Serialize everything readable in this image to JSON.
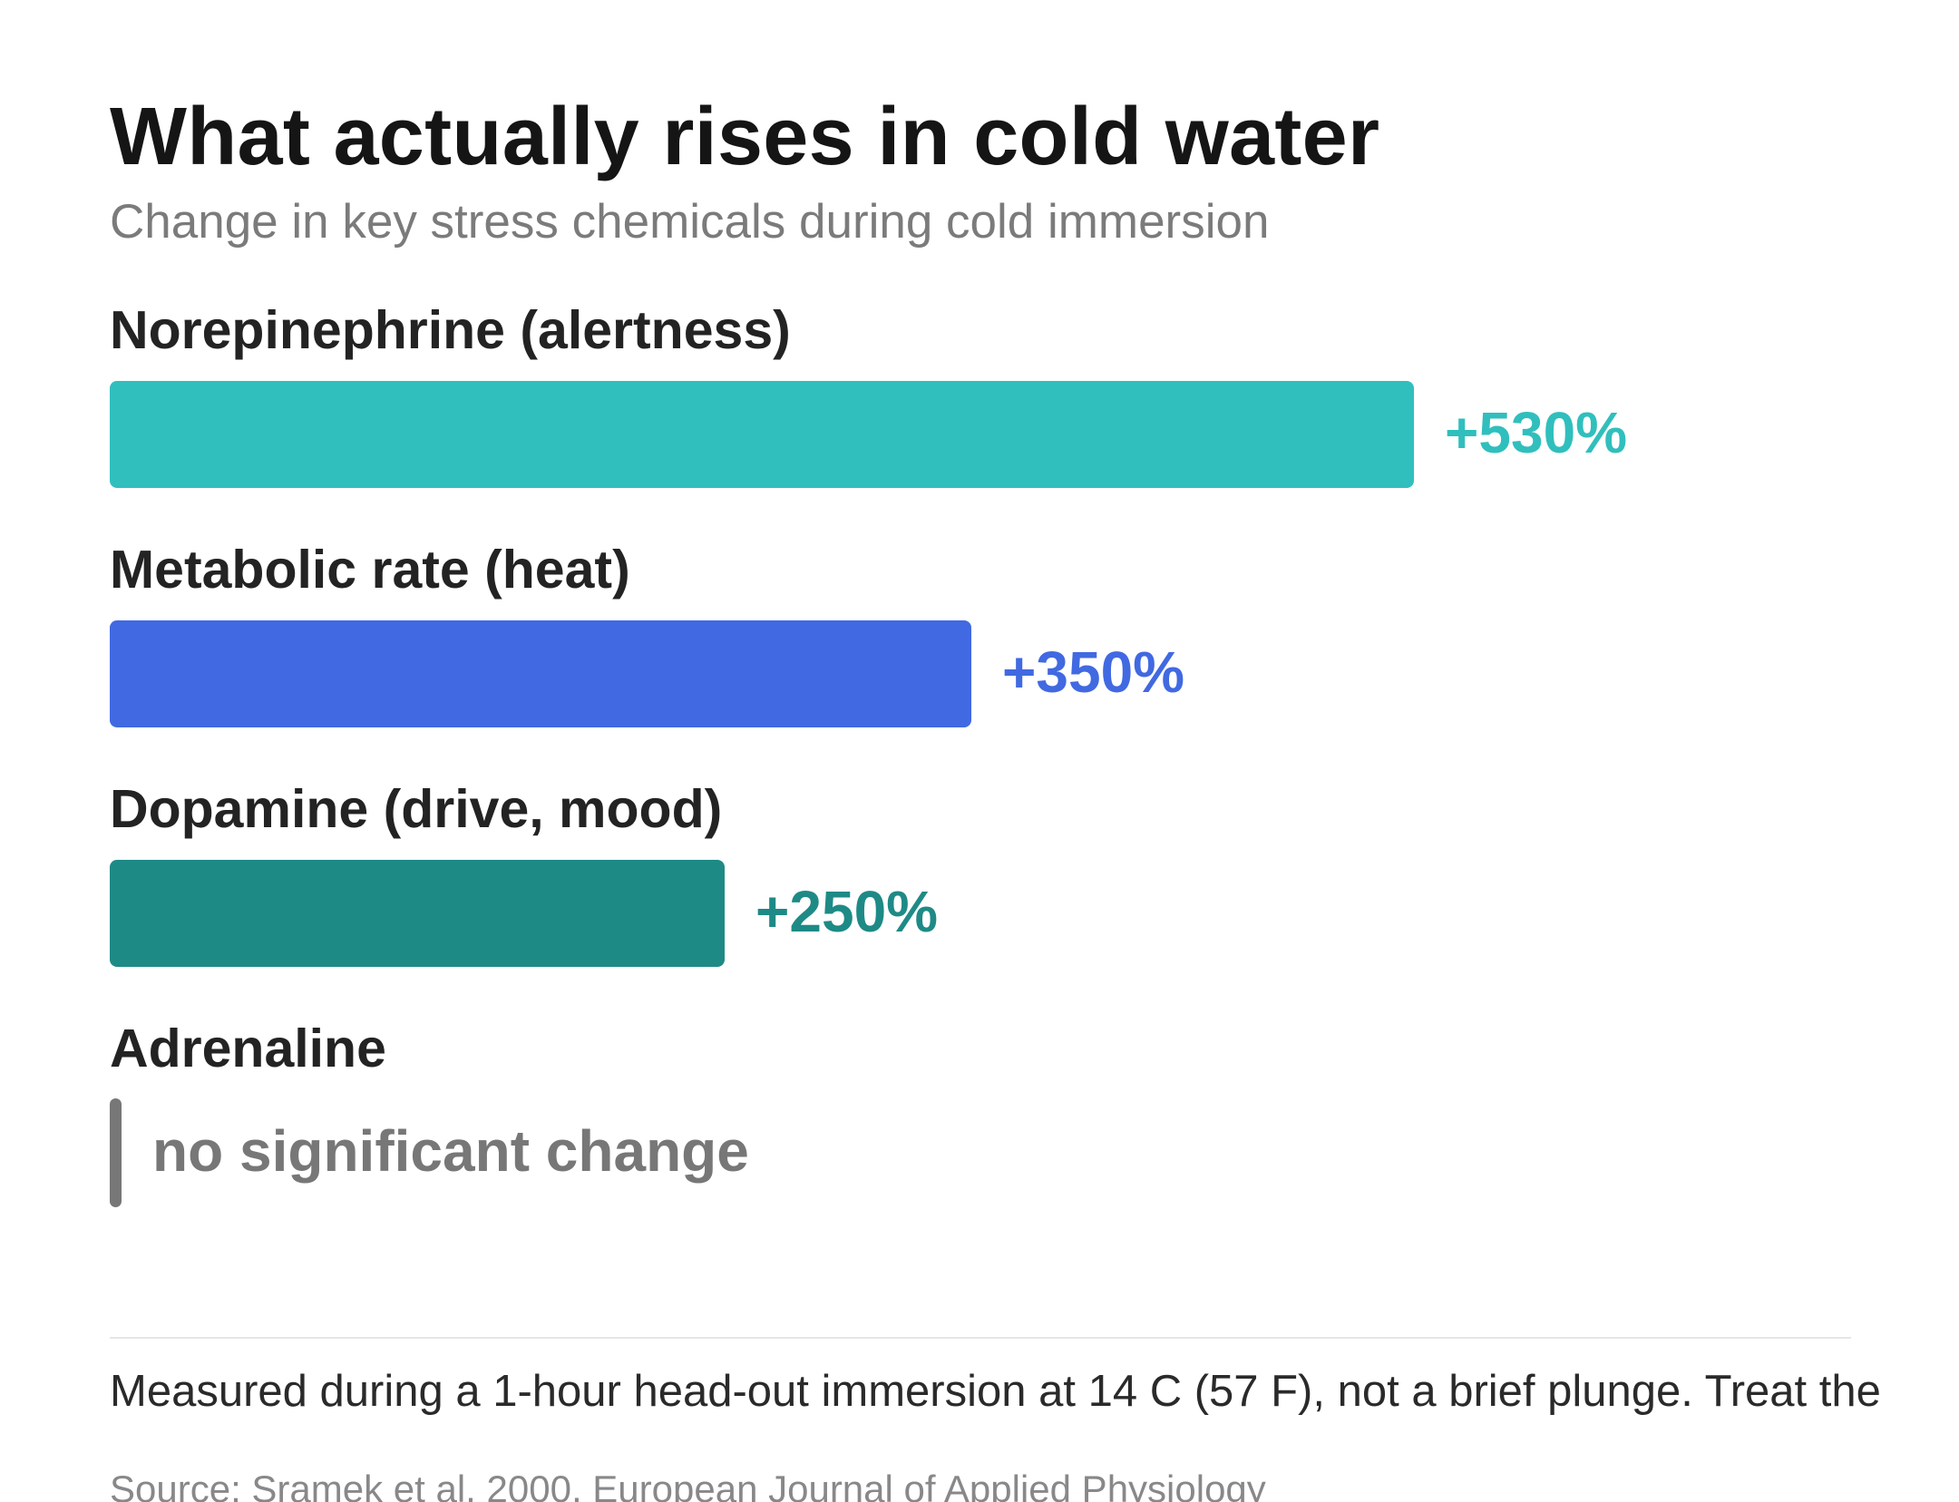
{
  "title": "What actually rises in cold water",
  "subtitle": "Change in key stress chemicals during cold immersion",
  "chart_data": {
    "type": "bar",
    "orientation": "horizontal",
    "categories": [
      "Norepinephrine (alertness)",
      "Metabolic rate (heat)",
      "Dopamine (drive, mood)",
      "Adrenaline"
    ],
    "values": [
      530,
      350,
      250,
      0
    ],
    "value_labels": [
      "+530%",
      "+350%",
      "+250%",
      "no significant change"
    ],
    "colors": [
      "#30bfbd",
      "#4169e1",
      "#1e8a86",
      "#777777"
    ],
    "unit": "%",
    "xlim": [
      0,
      530
    ],
    "grid": false,
    "legend": "none"
  },
  "footnote": "Measured during a 1-hour head-out immersion at 14 C (57 F), not a brief plunge. Treat the",
  "source": "Source: Sramek et al. 2000, European Journal of Applied Physiology"
}
